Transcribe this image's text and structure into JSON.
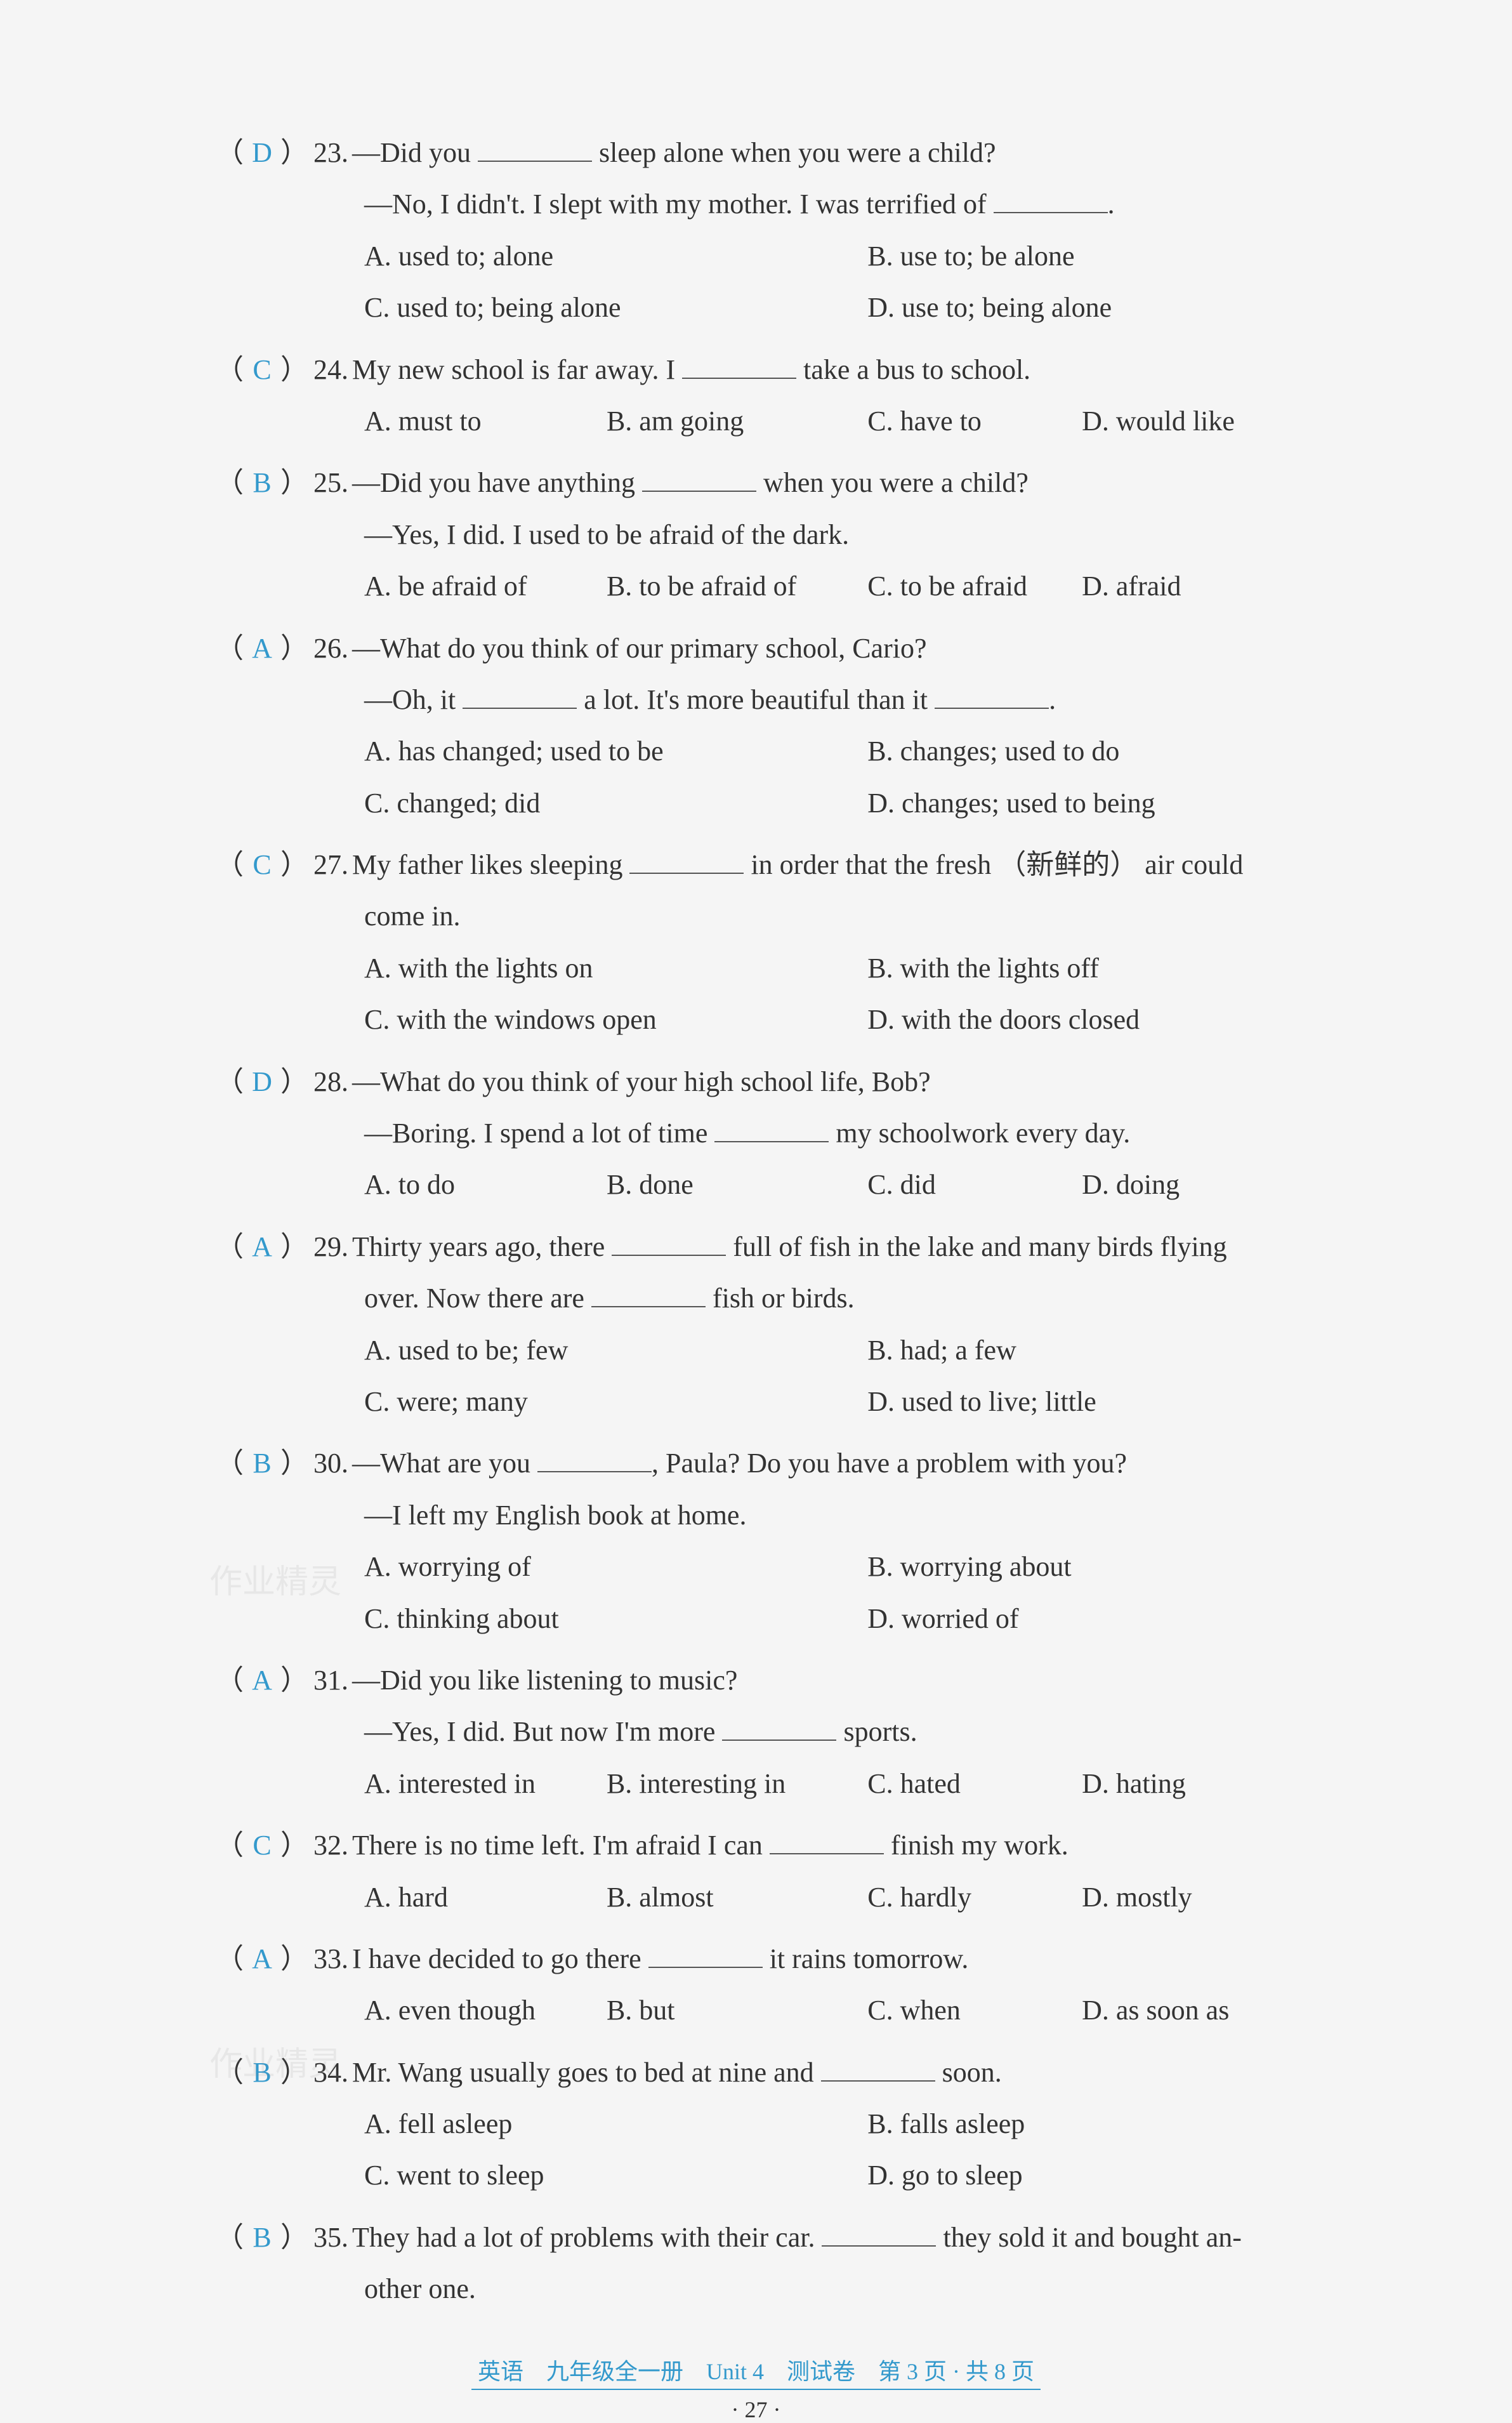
{
  "questions": [
    {
      "num": "23",
      "answer": "D",
      "line1_pre": "—Did you ",
      "line1_post": " sleep alone when you were a child?",
      "line2": "—No, I didn't. I slept with my mother. I was terrified of ",
      "line2_post": ".",
      "opts": {
        "A": "A. used to; alone",
        "B": "B. use to; be alone",
        "C": "C. used to; being alone",
        "D": "D. use to; being alone"
      }
    },
    {
      "num": "24",
      "answer": "C",
      "line1_pre": "My new school is far away. I ",
      "line1_post": " take a bus to school.",
      "opts": {
        "A": "A. must to",
        "B": "B. am going",
        "C": "C. have to",
        "D": "D. would like"
      }
    },
    {
      "num": "25",
      "answer": "B",
      "line1_pre": "—Did you have anything ",
      "line1_post": " when you were a child?",
      "line2": "—Yes, I did. I used to be afraid of the dark.",
      "opts": {
        "A": "A. be afraid of",
        "B": "B. to be afraid of",
        "C": "C. to be afraid",
        "D": "D. afraid"
      }
    },
    {
      "num": "26",
      "answer": "A",
      "line1": "—What do you think of our primary school, Cario?",
      "line2_pre": "—Oh, it ",
      "line2_mid": " a lot. It's more beautiful than it ",
      "line2_post": ".",
      "opts": {
        "A": "A. has changed; used to be",
        "B": "B. changes; used to do",
        "C": "C. changed; did",
        "D": "D. changes; used to being"
      }
    },
    {
      "num": "27",
      "answer": "C",
      "line1_pre": "My father likes sleeping ",
      "line1_post": " in order that the fresh （新鲜的） air could",
      "line2": "come in.",
      "opts": {
        "A": "A. with the lights on",
        "B": "B. with the lights off",
        "C": "C. with the windows open",
        "D": "D. with the doors closed"
      }
    },
    {
      "num": "28",
      "answer": "D",
      "line1": "—What do you think of your high school life, Bob?",
      "line2_pre": "—Boring. I spend a lot of time ",
      "line2_post": " my schoolwork every day.",
      "opts": {
        "A": "A. to do",
        "B": "B. done",
        "C": "C. did",
        "D": "D. doing"
      }
    },
    {
      "num": "29",
      "answer": "A",
      "line1_pre": "Thirty years ago, there ",
      "line1_post": " full of fish in the lake and many birds flying",
      "line2_pre": "over. Now there are ",
      "line2_post": " fish or birds.",
      "opts": {
        "A": "A. used to be; few",
        "B": "B. had; a few",
        "C": "C. were; many",
        "D": "D. used to live; little"
      }
    },
    {
      "num": "30",
      "answer": "B",
      "line1_pre": "—What are you ",
      "line1_post": ", Paula? Do you have a problem with you?",
      "line2": "—I left my English book at home.",
      "opts": {
        "A": "A. worrying of",
        "B": "B. worrying about",
        "C": "C. thinking about",
        "D": "D. worried of"
      }
    },
    {
      "num": "31",
      "answer": "A",
      "line1": "—Did you like listening to music?",
      "line2_pre": "—Yes, I did. But now I'm more ",
      "line2_post": " sports.",
      "opts": {
        "A": "A. interested in",
        "B": "B. interesting in",
        "C": "C. hated",
        "D": "D. hating"
      }
    },
    {
      "num": "32",
      "answer": "C",
      "line1_pre": "There is no time left. I'm afraid I can ",
      "line1_post": " finish my work.",
      "opts": {
        "A": "A. hard",
        "B": "B. almost",
        "C": "C. hardly",
        "D": "D. mostly"
      }
    },
    {
      "num": "33",
      "answer": "A",
      "line1_pre": "I have decided to go there ",
      "line1_post": " it rains tomorrow.",
      "opts": {
        "A": "A. even though",
        "B": "B. but",
        "C": "C. when",
        "D": "D. as soon as"
      }
    },
    {
      "num": "34",
      "answer": "B",
      "line1_pre": "Mr. Wang usually goes to bed at nine and ",
      "line1_post": " soon.",
      "opts": {
        "A": "A. fell asleep",
        "B": "B. falls asleep",
        "C": "C. went to sleep",
        "D": "D. go to sleep"
      }
    },
    {
      "num": "35",
      "answer": "B",
      "line1_pre": "They had a lot of problems with their car. ",
      "line1_post": " they sold it and bought an-",
      "line2": "other one."
    }
  ],
  "footer": {
    "line1": "英语　九年级全一册　Unit 4　测试卷　第 3 页 · 共 8 页",
    "line2": "· 27 ·"
  },
  "watermark": "作业精灵"
}
